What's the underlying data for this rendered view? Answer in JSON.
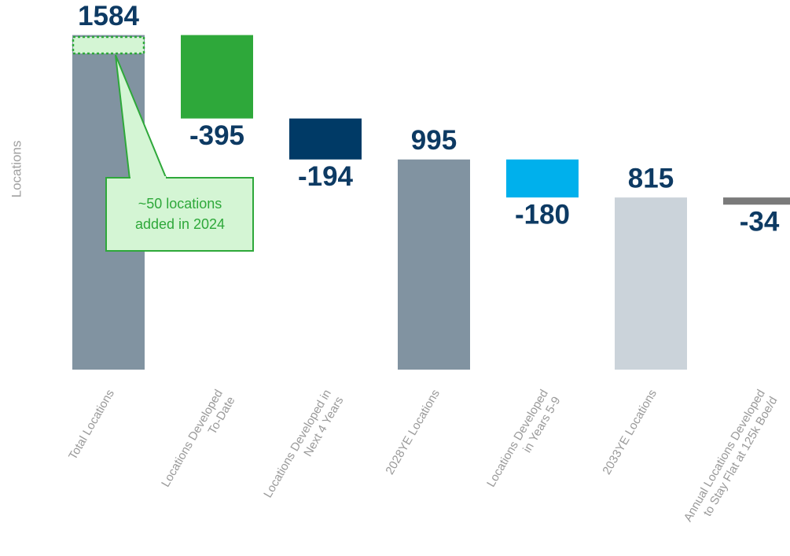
{
  "chart_data": {
    "type": "waterfall",
    "y_label": "Locations",
    "categories": [
      [
        "Total Locations"
      ],
      [
        "Locations Developed",
        "To-Date"
      ],
      [
        "Locations Developed in",
        "Next 4 Years"
      ],
      [
        "2028YE Locations"
      ],
      [
        "Locations Developed",
        "in Years 5-9"
      ],
      [
        "2033YE Locations"
      ],
      [
        "Annual Locations Developed",
        "to Stay Flat at 125k Boe/d"
      ]
    ],
    "values": [
      1584,
      -395,
      -194,
      995,
      -180,
      815,
      -34
    ],
    "measures": [
      "total",
      "relative",
      "relative",
      "total",
      "relative",
      "total",
      "relative"
    ],
    "colors": [
      "#8193a1",
      "#2ea83a",
      "#003a66",
      "#8193a1",
      "#00b0ec",
      "#cbd3da",
      "#7a7a7a"
    ],
    "label_color": "#0d3a63",
    "ylim": [
      0,
      1750
    ],
    "annotation": [
      "~50 locations",
      "added in 2024"
    ]
  }
}
